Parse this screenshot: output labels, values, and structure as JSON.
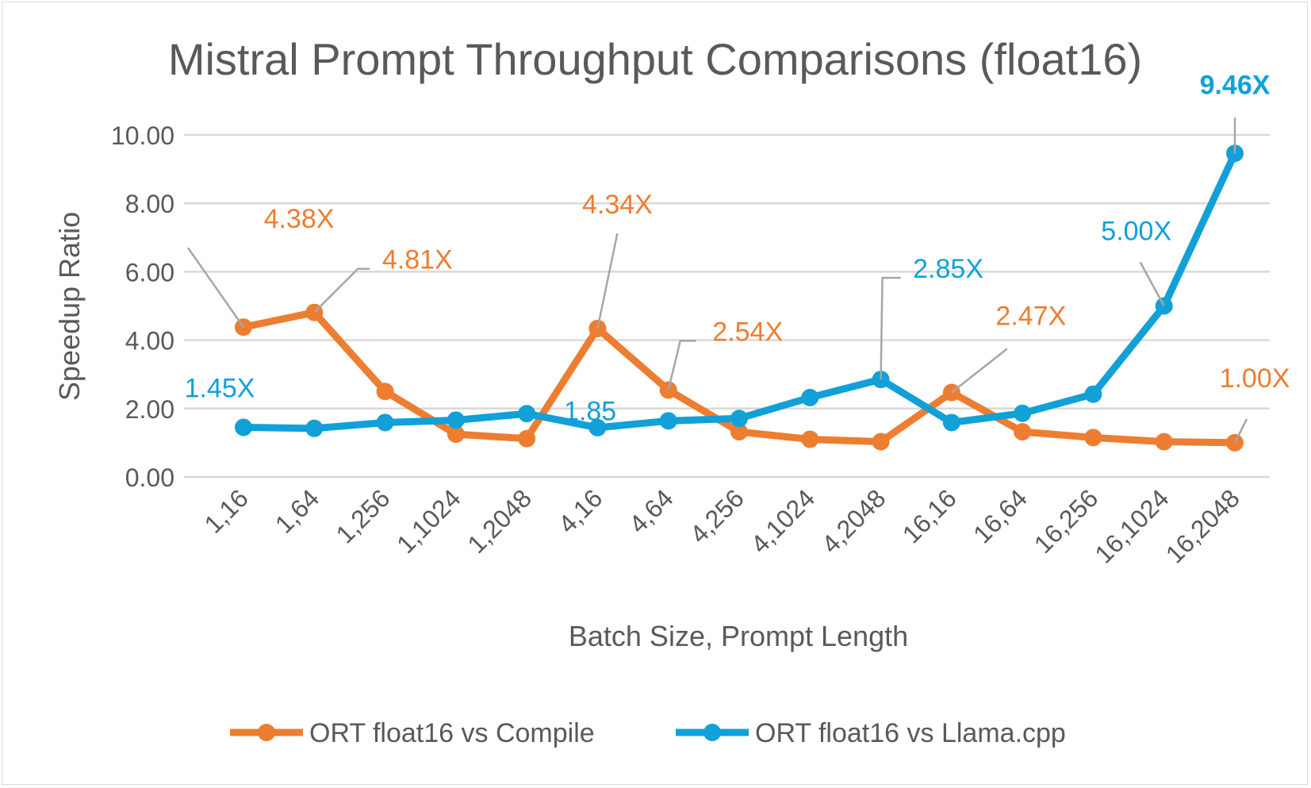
{
  "chart_data": {
    "type": "line",
    "title": "Mistral Prompt Throughput Comparisons (float16)",
    "xlabel": "Batch Size, Prompt Length",
    "ylabel": "Speedup Ratio",
    "ylim": [
      0,
      10
    ],
    "yticks": [
      "0.00",
      "2.00",
      "4.00",
      "6.00",
      "8.00",
      "10.00"
    ],
    "grid": true,
    "legend_position": "bottom",
    "categories": [
      "1,16",
      "1,64",
      "1,256",
      "1,1024",
      "1,2048",
      "4,16",
      "4,64",
      "4,256",
      "4,1024",
      "4,2048",
      "16,16",
      "16,64",
      "16,256",
      "16,1024",
      "16,2048"
    ],
    "series": [
      {
        "name": "ORT float16 vs Compile",
        "color": "#ED7D31",
        "values": [
          4.38,
          4.81,
          2.5,
          1.25,
          1.12,
          4.34,
          2.54,
          1.32,
          1.1,
          1.03,
          2.47,
          1.32,
          1.15,
          1.03,
          1.0
        ]
      },
      {
        "name": "ORT float16  vs Llama.cpp",
        "color": "#11A0D7",
        "values": [
          1.45,
          1.42,
          1.59,
          1.66,
          1.85,
          1.44,
          1.64,
          1.71,
          2.32,
          2.85,
          1.59,
          1.86,
          2.42,
          5.0,
          9.46
        ]
      }
    ],
    "data_labels": [
      {
        "series": 0,
        "index": 0,
        "text": "4.38X"
      },
      {
        "series": 0,
        "index": 1,
        "text": "4.81X"
      },
      {
        "series": 0,
        "index": 5,
        "text": "4.34X"
      },
      {
        "series": 0,
        "index": 6,
        "text": "2.54X"
      },
      {
        "series": 0,
        "index": 10,
        "text": "2.47X"
      },
      {
        "series": 0,
        "index": 14,
        "text": "1.00X"
      },
      {
        "series": 1,
        "index": 0,
        "text": "1.45X"
      },
      {
        "series": 1,
        "index": 4,
        "text": "1.85"
      },
      {
        "series": 1,
        "index": 9,
        "text": "2.85X"
      },
      {
        "series": 1,
        "index": 13,
        "text": "5.00X"
      },
      {
        "series": 1,
        "index": 14,
        "text": "9.46X",
        "bold": true
      }
    ]
  }
}
